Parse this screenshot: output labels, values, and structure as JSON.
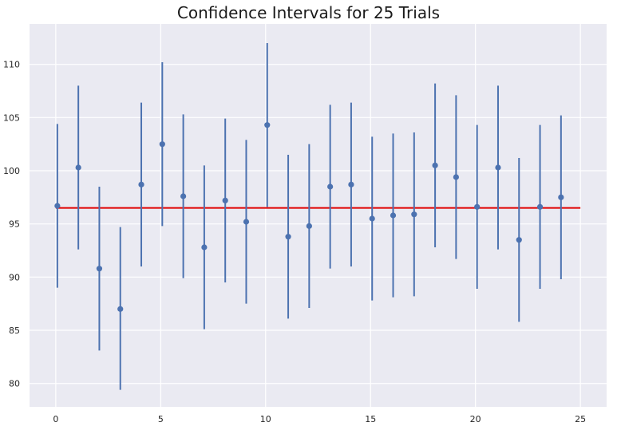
{
  "chart_data": {
    "type": "scatter",
    "title": "Confidence Intervals for 25 Trials",
    "xlabel": "",
    "ylabel": "",
    "xlim": [
      -1.25,
      26.25
    ],
    "ylim": [
      77.8,
      113.8
    ],
    "x_ticks": [
      0,
      5,
      10,
      15,
      20,
      25
    ],
    "y_ticks": [
      80,
      85,
      90,
      95,
      100,
      105,
      110
    ],
    "grid": true,
    "background": "#eaeaf2",
    "grid_color": "#ffffff",
    "point_color": "#4c72b0",
    "reference_line": {
      "y": 96.5,
      "x_start": 0,
      "x_end": 25,
      "color": "#e00000"
    },
    "series": [
      {
        "x": [
          0,
          1,
          2,
          3,
          4,
          5,
          6,
          7,
          8,
          9,
          10,
          11,
          12,
          13,
          14,
          15,
          16,
          17,
          18,
          19,
          20,
          21,
          22,
          23,
          24
        ],
        "y": [
          96.7,
          100.3,
          90.8,
          87.0,
          98.7,
          102.5,
          97.6,
          92.8,
          97.2,
          95.2,
          104.3,
          93.8,
          94.8,
          98.5,
          98.7,
          95.5,
          95.8,
          95.9,
          100.5,
          99.4,
          96.6,
          100.3,
          93.5,
          96.6,
          97.5
        ],
        "lower": [
          89.0,
          92.6,
          83.1,
          79.4,
          91.0,
          94.8,
          89.9,
          85.1,
          89.5,
          87.5,
          96.6,
          86.1,
          87.1,
          90.8,
          91.0,
          87.8,
          88.1,
          88.2,
          92.8,
          91.7,
          88.9,
          92.6,
          85.8,
          88.9,
          89.8
        ],
        "upper": [
          104.4,
          108.0,
          98.5,
          94.7,
          106.4,
          110.2,
          105.3,
          100.5,
          104.9,
          102.9,
          112.0,
          101.5,
          102.5,
          106.2,
          106.4,
          103.2,
          103.5,
          103.6,
          108.2,
          107.1,
          104.3,
          108.0,
          101.2,
          104.3,
          105.2
        ]
      }
    ]
  }
}
